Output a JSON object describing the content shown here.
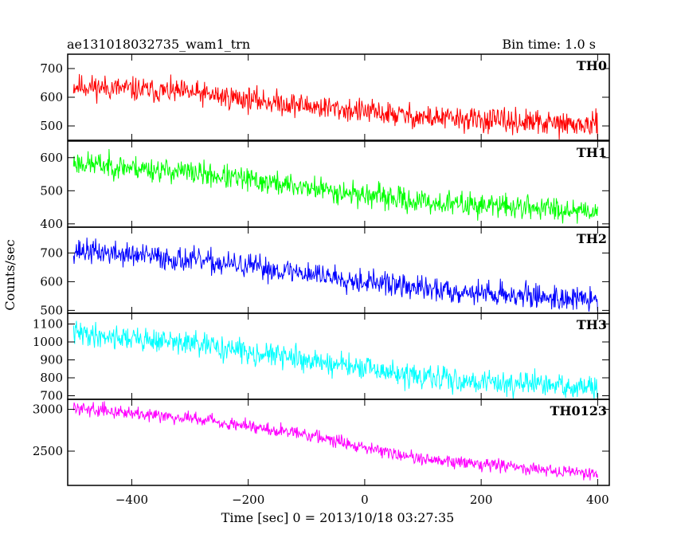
{
  "chart_data": {
    "type": "line",
    "title": "ae131018032735_wam1_trn",
    "bin_time_label": "Bin time: 1.0 s",
    "xlabel": "Time [sec] 0 = 2013/10/18 03:27:35",
    "ylabel": "Counts/sec",
    "xlim": [
      -510,
      420
    ],
    "x_ticks": [
      -400,
      -200,
      0,
      200,
      400
    ],
    "x_tick_labels": [
      "−400",
      "−200",
      "0",
      "200",
      "400"
    ],
    "x_range": [
      -500,
      400
    ],
    "panels": [
      {
        "name": "TH0",
        "color": "#ff0000",
        "ylim": [
          450,
          750
        ],
        "y_ticks": [
          500,
          600,
          700
        ],
        "y_tick_labels": [
          "500",
          "600",
          "700"
        ],
        "trend": [
          [
            -500,
            640
          ],
          [
            -300,
            615
          ],
          [
            -100,
            570
          ],
          [
            100,
            530
          ],
          [
            400,
            500
          ]
        ],
        "noise_amplitude": 35,
        "seed": 11
      },
      {
        "name": "TH1",
        "color": "#00ff00",
        "ylim": [
          390,
          650
        ],
        "y_ticks": [
          400,
          500,
          600
        ],
        "y_tick_labels": [
          "400",
          "500",
          "600"
        ],
        "trend": [
          [
            -500,
            585
          ],
          [
            -300,
            555
          ],
          [
            -100,
            510
          ],
          [
            100,
            465
          ],
          [
            400,
            440
          ]
        ],
        "noise_amplitude": 30,
        "seed": 23
      },
      {
        "name": "TH2",
        "color": "#0000ff",
        "ylim": [
          490,
          790
        ],
        "y_ticks": [
          500,
          600,
          700
        ],
        "y_tick_labels": [
          "500",
          "600",
          "700"
        ],
        "trend": [
          [
            -500,
            710
          ],
          [
            -300,
            675
          ],
          [
            -100,
            630
          ],
          [
            100,
            575
          ],
          [
            400,
            535
          ]
        ],
        "noise_amplitude": 35,
        "seed": 37
      },
      {
        "name": "TH3",
        "color": "#00ffff",
        "ylim": [
          680,
          1160
        ],
        "y_ticks": [
          700,
          800,
          900,
          1000,
          1100
        ],
        "y_tick_labels": [
          "700",
          "800",
          "900",
          "1000",
          "1100"
        ],
        "trend": [
          [
            -500,
            1050
          ],
          [
            -300,
            990
          ],
          [
            -100,
            900
          ],
          [
            100,
            800
          ],
          [
            400,
            740
          ]
        ],
        "noise_amplitude": 55,
        "seed": 41
      },
      {
        "name": "TH0123",
        "color": "#ff00ff",
        "ylim": [
          2090,
          3120
        ],
        "y_ticks": [
          2500,
          3000
        ],
        "y_tick_labels": [
          "2500",
          "3000"
        ],
        "trend": [
          [
            -500,
            3020
          ],
          [
            -300,
            2900
          ],
          [
            -100,
            2700
          ],
          [
            100,
            2400
          ],
          [
            400,
            2230
          ]
        ],
        "noise_amplitude": 65,
        "seed": 59
      }
    ]
  }
}
